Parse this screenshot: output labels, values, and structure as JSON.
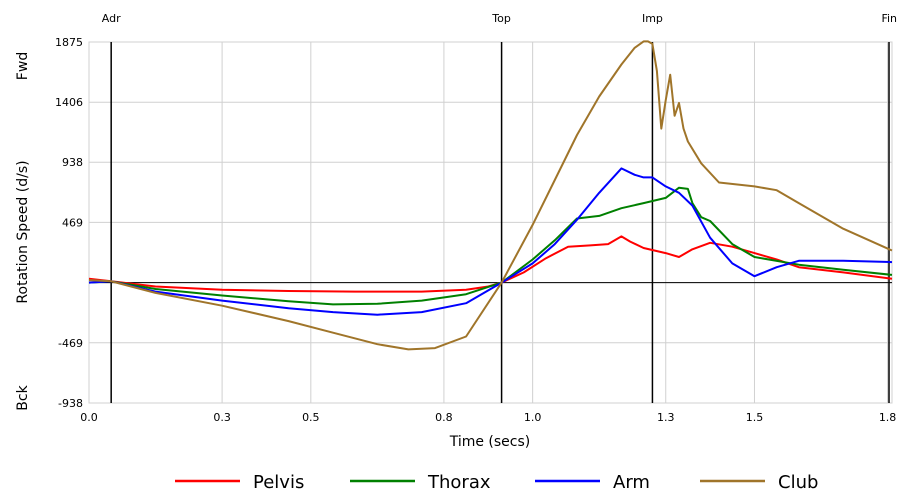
{
  "chart_data": {
    "type": "line",
    "xlabel": "Time (secs)",
    "ylabel": "Rotation Speed (d/s)",
    "xlim": [
      0.0,
      1.81
    ],
    "ylim": [
      -938,
      1875
    ],
    "x_ticks": [
      0.0,
      0.3,
      0.5,
      0.8,
      1.0,
      1.3,
      1.5,
      1.8
    ],
    "x_tick_labels": [
      "0.0",
      "0.3",
      "0.5",
      "0.8",
      "1.0",
      "1.3",
      "1.5",
      "1.8"
    ],
    "y_ticks": [
      -938,
      -469,
      0,
      469,
      938,
      1406,
      1875
    ],
    "y_tick_labels": [
      "-938",
      "-469",
      "",
      "469",
      "938",
      "1406",
      "1875"
    ],
    "side_labels": {
      "top": "Fwd",
      "bottom": "Bck"
    },
    "grid": true,
    "legend_position": "bottom",
    "events": [
      {
        "label": "Adr",
        "x": 0.05
      },
      {
        "label": "Top",
        "x": 0.93
      },
      {
        "label": "Imp",
        "x": 1.27
      },
      {
        "label": "Fin",
        "x": 1.81
      }
    ],
    "series": [
      {
        "name": "Pelvis",
        "color": "#ff0000",
        "x": [
          0.0,
          0.05,
          0.15,
          0.3,
          0.45,
          0.6,
          0.75,
          0.85,
          0.9,
          0.93,
          0.98,
          1.03,
          1.08,
          1.13,
          1.17,
          1.2,
          1.22,
          1.25,
          1.3,
          1.33,
          1.36,
          1.4,
          1.45,
          1.5,
          1.55,
          1.6,
          1.7,
          1.81
        ],
        "y": [
          30,
          10,
          -30,
          -55,
          -65,
          -70,
          -70,
          -55,
          -30,
          0,
          80,
          190,
          280,
          290,
          300,
          360,
          320,
          270,
          230,
          200,
          260,
          310,
          280,
          230,
          180,
          120,
          80,
          30
        ]
      },
      {
        "name": "Thorax",
        "color": "#008000",
        "x": [
          0.0,
          0.05,
          0.15,
          0.3,
          0.45,
          0.55,
          0.65,
          0.75,
          0.85,
          0.93,
          1.0,
          1.05,
          1.1,
          1.15,
          1.2,
          1.25,
          1.3,
          1.33,
          1.35,
          1.36,
          1.38,
          1.4,
          1.45,
          1.5,
          1.6,
          1.7,
          1.81
        ],
        "y": [
          0,
          10,
          -50,
          -100,
          -145,
          -170,
          -165,
          -140,
          -90,
          0,
          180,
          330,
          500,
          520,
          580,
          620,
          660,
          740,
          730,
          620,
          510,
          480,
          300,
          200,
          140,
          100,
          60
        ]
      },
      {
        "name": "Arm",
        "color": "#0000ff",
        "x": [
          0.0,
          0.05,
          0.15,
          0.3,
          0.45,
          0.55,
          0.65,
          0.75,
          0.85,
          0.93,
          1.0,
          1.05,
          1.1,
          1.15,
          1.2,
          1.23,
          1.25,
          1.27,
          1.3,
          1.33,
          1.36,
          1.4,
          1.45,
          1.5,
          1.55,
          1.6,
          1.7,
          1.81
        ],
        "y": [
          0,
          10,
          -70,
          -140,
          -200,
          -230,
          -250,
          -230,
          -160,
          0,
          150,
          300,
          490,
          700,
          890,
          840,
          820,
          820,
          750,
          700,
          600,
          350,
          150,
          50,
          120,
          170,
          170,
          160
        ]
      },
      {
        "name": "Club",
        "color": "#a0752a",
        "x": [
          0.0,
          0.05,
          0.15,
          0.3,
          0.45,
          0.55,
          0.65,
          0.72,
          0.78,
          0.85,
          0.93,
          1.0,
          1.05,
          1.1,
          1.15,
          1.2,
          1.23,
          1.25,
          1.26,
          1.27,
          1.28,
          1.29,
          1.3,
          1.31,
          1.32,
          1.33,
          1.34,
          1.35,
          1.38,
          1.42,
          1.5,
          1.55,
          1.6,
          1.7,
          1.81
        ],
        "y": [
          20,
          10,
          -80,
          -180,
          -300,
          -390,
          -480,
          -520,
          -510,
          -420,
          0,
          450,
          800,
          1150,
          1450,
          1700,
          1830,
          1880,
          1880,
          1860,
          1650,
          1200,
          1420,
          1620,
          1300,
          1400,
          1200,
          1100,
          930,
          780,
          750,
          720,
          620,
          420,
          250
        ]
      }
    ]
  }
}
